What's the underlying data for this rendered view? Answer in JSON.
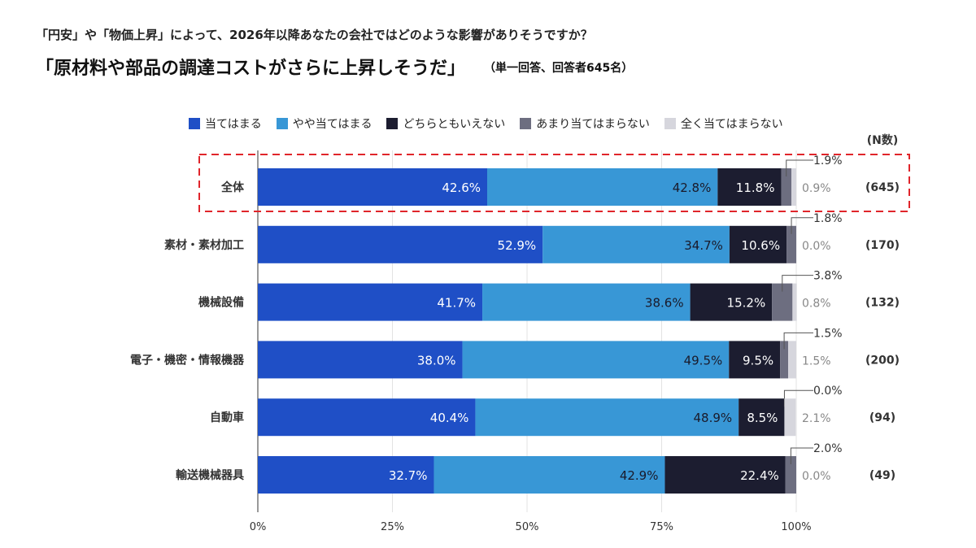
{
  "question": "「円安」や「物価上昇」によって、2026年以降あなたの会社ではどのような影響がありそうですか？",
  "title": "「原材料や部品の調達コストがさらに上昇しそうだ」",
  "note": "（単一回答、回答者645名）",
  "chart_data": {
    "type": "bar",
    "orientation": "horizontal",
    "stacked": true,
    "categories": [
      "全体",
      "素材・素材加工",
      "機械設備",
      "電子・機密・情報機器",
      "自動車",
      "輸送機械器具"
    ],
    "n_header": "(N数)",
    "n": [
      "(645)",
      "(170)",
      "(132)",
      "(200)",
      "(94)",
      "(49)"
    ],
    "series": [
      {
        "name": "当てはまる",
        "color": "#1f4fc6",
        "values": [
          42.6,
          52.9,
          41.7,
          38.0,
          40.4,
          32.7
        ]
      },
      {
        "name": "やや当てはまる",
        "color": "#3897d6",
        "values": [
          42.8,
          34.7,
          38.6,
          49.5,
          48.9,
          42.9
        ]
      },
      {
        "name": "どちらともいえない",
        "color": "#1c1d30",
        "values": [
          11.8,
          10.6,
          15.2,
          9.5,
          8.5,
          22.4
        ]
      },
      {
        "name": "あまり当てはまらない",
        "color": "#6d6e80",
        "values": [
          1.9,
          1.8,
          3.8,
          1.5,
          0.0,
          2.0
        ]
      },
      {
        "name": "全く当てはまらない",
        "color": "#d6d6dd",
        "values": [
          0.9,
          0.0,
          0.8,
          1.5,
          2.1,
          0.0
        ]
      }
    ],
    "xticks": [
      "0%",
      "25%",
      "50%",
      "75%",
      "100%"
    ],
    "xlim": [
      0,
      100
    ],
    "highlight": "全体",
    "legend": "top"
  }
}
